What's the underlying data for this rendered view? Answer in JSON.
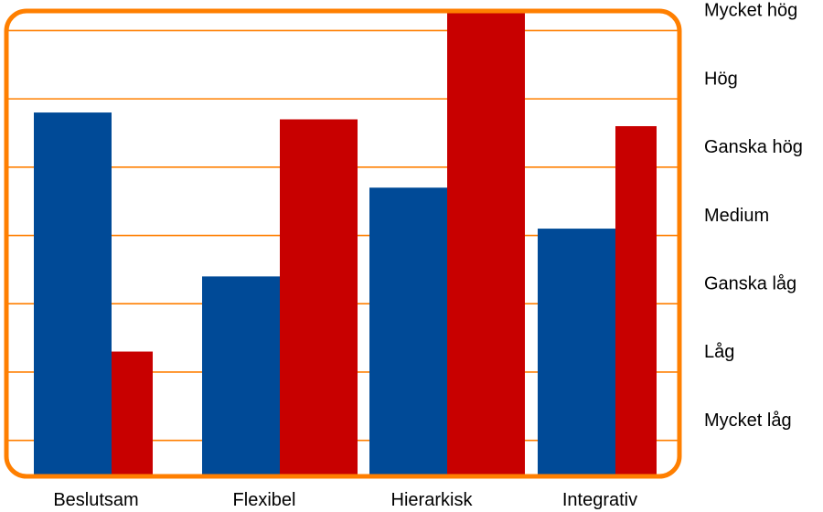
{
  "chart_data": {
    "type": "bar",
    "categories": [
      "Beslutsam",
      "Flexibel",
      "Hierarkisk",
      "Integrativ"
    ],
    "series": [
      {
        "values": [
          5.3,
          2.9,
          4.2,
          3.6
        ],
        "color": "#004a97"
      },
      {
        "values": [
          1.8,
          5.2,
          6.8,
          5.1
        ],
        "color": "#c80000"
      }
    ],
    "ylim": [
      0,
      6.8
    ],
    "y_tick_labels": [
      "Mycket låg",
      "Låg",
      "Ganska låg",
      "Medium",
      "Ganska hög",
      "Hög",
      "Mycket hög"
    ],
    "grid": true,
    "frame_color": "#ff7f00",
    "grid_color": "#ff7f00"
  }
}
